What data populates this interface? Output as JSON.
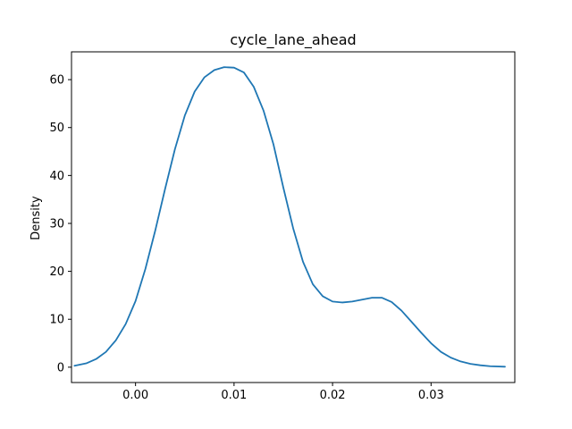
{
  "chart_data": {
    "type": "line",
    "title": "cycle_lane_ahead",
    "xlabel": "",
    "ylabel": "Density",
    "xlim": [
      -0.0065,
      0.0385
    ],
    "ylim": [
      -3.2,
      65.8
    ],
    "x_ticks": [
      0.0,
      0.01,
      0.02,
      0.03
    ],
    "x_tick_labels": [
      "0.00",
      "0.01",
      "0.02",
      "0.03"
    ],
    "y_ticks": [
      0,
      10,
      20,
      30,
      40,
      50,
      60
    ],
    "y_tick_labels": [
      "0",
      "10",
      "20",
      "30",
      "40",
      "50",
      "60"
    ],
    "grid": false,
    "legend": null,
    "line_color": "#1f77b4",
    "series": [
      {
        "x": [
          -0.0062,
          -0.005,
          -0.004,
          -0.003,
          -0.002,
          -0.001,
          0.0,
          0.001,
          0.002,
          0.003,
          0.004,
          0.005,
          0.006,
          0.007,
          0.008,
          0.009,
          0.01,
          0.011,
          0.012,
          0.013,
          0.014,
          0.015,
          0.016,
          0.017,
          0.018,
          0.019,
          0.02,
          0.021,
          0.022,
          0.023,
          0.024,
          0.025,
          0.026,
          0.027,
          0.028,
          0.029,
          0.03,
          0.031,
          0.032,
          0.033,
          0.034,
          0.035,
          0.036,
          0.0375
        ],
        "y": [
          0.3,
          0.8,
          1.7,
          3.2,
          5.6,
          9.0,
          13.8,
          20.5,
          28.5,
          37.2,
          45.5,
          52.5,
          57.5,
          60.5,
          62.0,
          62.6,
          62.5,
          61.5,
          58.5,
          53.5,
          46.5,
          37.5,
          29.0,
          22.0,
          17.3,
          14.8,
          13.7,
          13.5,
          13.7,
          14.1,
          14.5,
          14.5,
          13.6,
          11.8,
          9.5,
          7.2,
          5.0,
          3.2,
          2.0,
          1.2,
          0.7,
          0.4,
          0.2,
          0.1
        ]
      }
    ]
  }
}
